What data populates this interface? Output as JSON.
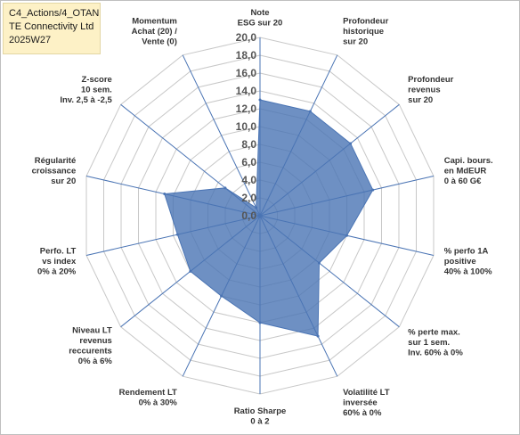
{
  "title_block": {
    "line1": "C4_Actions/4_OTAN",
    "line2": "TE Connectivity Ltd",
    "line3": "2025W27"
  },
  "chart_data": {
    "type": "radar",
    "r_range": [
      0,
      20
    ],
    "r_step": 2,
    "tick_labels": [
      "0,0",
      "2,0",
      "4,0",
      "6,0",
      "8,0",
      "10,0",
      "12,0",
      "14,0",
      "16,0",
      "18,0",
      "20,0"
    ],
    "axes": [
      [
        "Note",
        "ESG sur 20"
      ],
      [
        "Profondeur",
        "historique",
        "sur 20"
      ],
      [
        "Profondeur",
        "revenus",
        "sur 20"
      ],
      [
        "Capi. bours.",
        "en MdEUR",
        "0 à 60 G€"
      ],
      [
        "% perfo 1A",
        "positive",
        "40% à 100%"
      ],
      [
        "% perte max.",
        "sur 1 sem.",
        "Inv. 60% à 0%"
      ],
      [
        "Volatilité LT",
        "inversée",
        "60% à 0%"
      ],
      [
        "Ratio Sharpe",
        "0 à 2"
      ],
      [
        "Rendement LT",
        "0% à 30%"
      ],
      [
        "Niveau LT",
        "revenus",
        "reccurents",
        "0% à 6%"
      ],
      [
        "Perfo. LT",
        "vs index",
        "0% à 20%"
      ],
      [
        "Régularité",
        "croissance",
        "sur 20"
      ],
      [
        "Z-score",
        "10 sem.",
        "Inv. 2,5 à -2,5"
      ],
      [
        "Momentum",
        "Achat (20) /",
        "Vente (0)"
      ]
    ],
    "series": [
      {
        "values": [
          13,
          13,
          13,
          13,
          10,
          8.5,
          15,
          12,
          10,
          10,
          9.5,
          11,
          5,
          1
        ],
        "color": "#4a74b4"
      }
    ],
    "grid": true,
    "grid_color": "#c8c8c8",
    "spoke_color": "#4a74b4",
    "fill_color": "#4a74b4",
    "fill_opacity": 0.8
  }
}
